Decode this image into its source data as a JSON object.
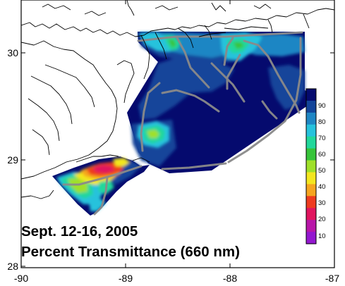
{
  "caption": {
    "line1": "Sept. 12-16, 2005",
    "line2": "Percent Transmittance (660 nm)"
  },
  "axes": {
    "x_ticks": [
      "-90",
      "-89",
      "-88",
      "-87"
    ],
    "y_ticks": [
      "30",
      "29",
      "28"
    ],
    "x_range": [
      -90,
      -87
    ],
    "y_range": [
      28,
      30.5
    ]
  },
  "colorbar": {
    "labels": [
      "90",
      "80",
      "70",
      "60",
      "50",
      "40",
      "30",
      "20",
      "10"
    ],
    "colors": [
      "#050a6e",
      "#13449a",
      "#1f86c4",
      "#27c2dc",
      "#22d79b",
      "#37c43a",
      "#9fe02a",
      "#f3e61f",
      "#f5a51f",
      "#ee3b1f",
      "#e0155e",
      "#b816a8",
      "#9417cf"
    ]
  },
  "legend_colors": {
    "land_outline": "#000000",
    "ship_track": "#8a8a8a"
  }
}
